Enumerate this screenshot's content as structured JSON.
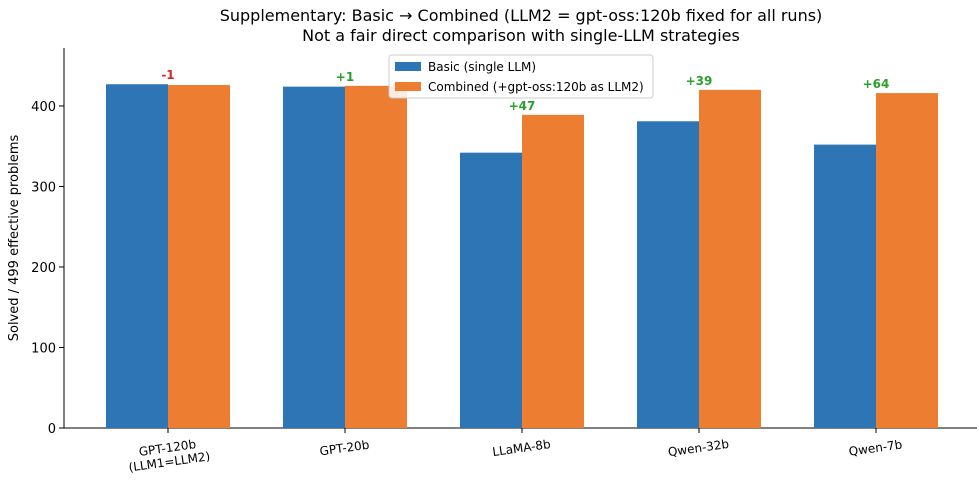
{
  "chart_data": {
    "type": "bar",
    "title": "Supplementary: Basic → Combined (LLM2 = gpt-oss:120b fixed for all runs)",
    "subtitle": "Not a fair direct comparison with single-LLM strategies",
    "ylabel": "Solved / 499 effective problems",
    "categories": [
      "GPT-120b\n(LLM1=LLM2)",
      "GPT-20b",
      "LLaMA-8b",
      "Qwen-32b",
      "Qwen-7b"
    ],
    "series": [
      {
        "name": "Basic (single LLM)",
        "color": "#2e75b6",
        "values": [
          427,
          424,
          342,
          381,
          352
        ]
      },
      {
        "name": "Combined (+gpt-oss:120b as LLM2)",
        "color": "#ed7d31",
        "values": [
          426,
          425,
          389,
          420,
          416
        ]
      }
    ],
    "diff_labels": [
      "-1",
      "+1",
      "+47",
      "+39",
      "+64"
    ],
    "diff_colors": [
      "#d62728",
      "#2ca02c",
      "#2ca02c",
      "#2ca02c",
      "#2ca02c"
    ],
    "ylim": [
      0,
      472
    ],
    "yticks": [
      0,
      100,
      200,
      300,
      400
    ],
    "legend": "upper center"
  }
}
